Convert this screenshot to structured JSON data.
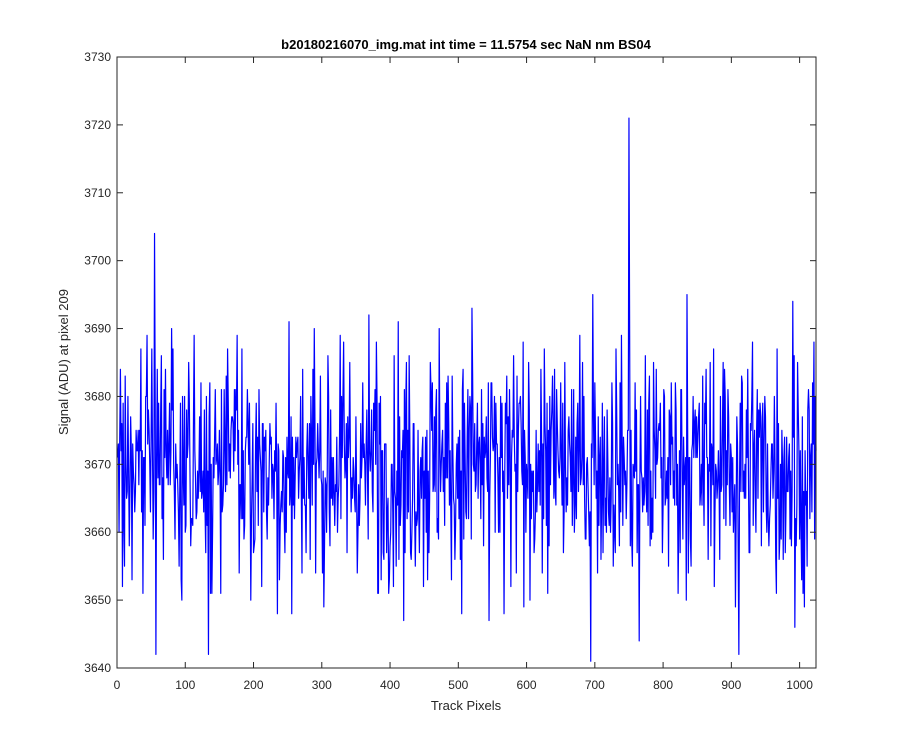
{
  "chart_data": {
    "type": "line",
    "title": "b20180216070_img.mat int time = 11.5754 sec  NaN nm BS04",
    "xlabel": "Track Pixels",
    "ylabel": "Signal (ADU) at pixel 209",
    "xlim": [
      0,
      1024
    ],
    "ylim": [
      3640,
      3730
    ],
    "xticks": [
      "0",
      "100",
      "200",
      "300",
      "400",
      "500",
      "600",
      "700",
      "800",
      "900",
      "1000"
    ],
    "yticks": [
      "3640",
      "3650",
      "3660",
      "3670",
      "3680",
      "3690",
      "3700",
      "3710",
      "3720",
      "3730"
    ],
    "grid": false,
    "legend": "none",
    "series": [
      {
        "color": "#0000ff",
        "x_start": 1,
        "x_step": 1,
        "count": 1024,
        "mean": 3670,
        "noise_range": [
          3648,
          3692
        ],
        "notable_points": [
          {
            "x": 5,
            "y": 3684
          },
          {
            "x": 8,
            "y": 3652
          },
          {
            "x": 22,
            "y": 3653
          },
          {
            "x": 44,
            "y": 3689
          },
          {
            "x": 55,
            "y": 3704
          },
          {
            "x": 57,
            "y": 3642
          },
          {
            "x": 80,
            "y": 3690
          },
          {
            "x": 95,
            "y": 3650
          },
          {
            "x": 105,
            "y": 3685
          },
          {
            "x": 113,
            "y": 3689
          },
          {
            "x": 134,
            "y": 3642
          },
          {
            "x": 137,
            "y": 3651
          },
          {
            "x": 235,
            "y": 3648
          },
          {
            "x": 252,
            "y": 3691
          },
          {
            "x": 256,
            "y": 3648
          },
          {
            "x": 289,
            "y": 3690
          },
          {
            "x": 303,
            "y": 3649
          },
          {
            "x": 380,
            "y": 3688
          },
          {
            "x": 383,
            "y": 3651
          },
          {
            "x": 412,
            "y": 3691
          },
          {
            "x": 420,
            "y": 3647
          },
          {
            "x": 428,
            "y": 3686
          },
          {
            "x": 472,
            "y": 3690
          },
          {
            "x": 520,
            "y": 3693
          },
          {
            "x": 545,
            "y": 3647
          },
          {
            "x": 567,
            "y": 3648
          },
          {
            "x": 596,
            "y": 3649
          },
          {
            "x": 694,
            "y": 3641
          },
          {
            "x": 697,
            "y": 3695
          },
          {
            "x": 750,
            "y": 3721
          },
          {
            "x": 765,
            "y": 3644
          },
          {
            "x": 835,
            "y": 3695
          },
          {
            "x": 906,
            "y": 3649
          },
          {
            "x": 911,
            "y": 3642
          },
          {
            "x": 931,
            "y": 3688
          },
          {
            "x": 990,
            "y": 3694
          },
          {
            "x": 993,
            "y": 3646
          },
          {
            "x": 1007,
            "y": 3649
          },
          {
            "x": 1022,
            "y": 3659
          }
        ]
      }
    ]
  }
}
